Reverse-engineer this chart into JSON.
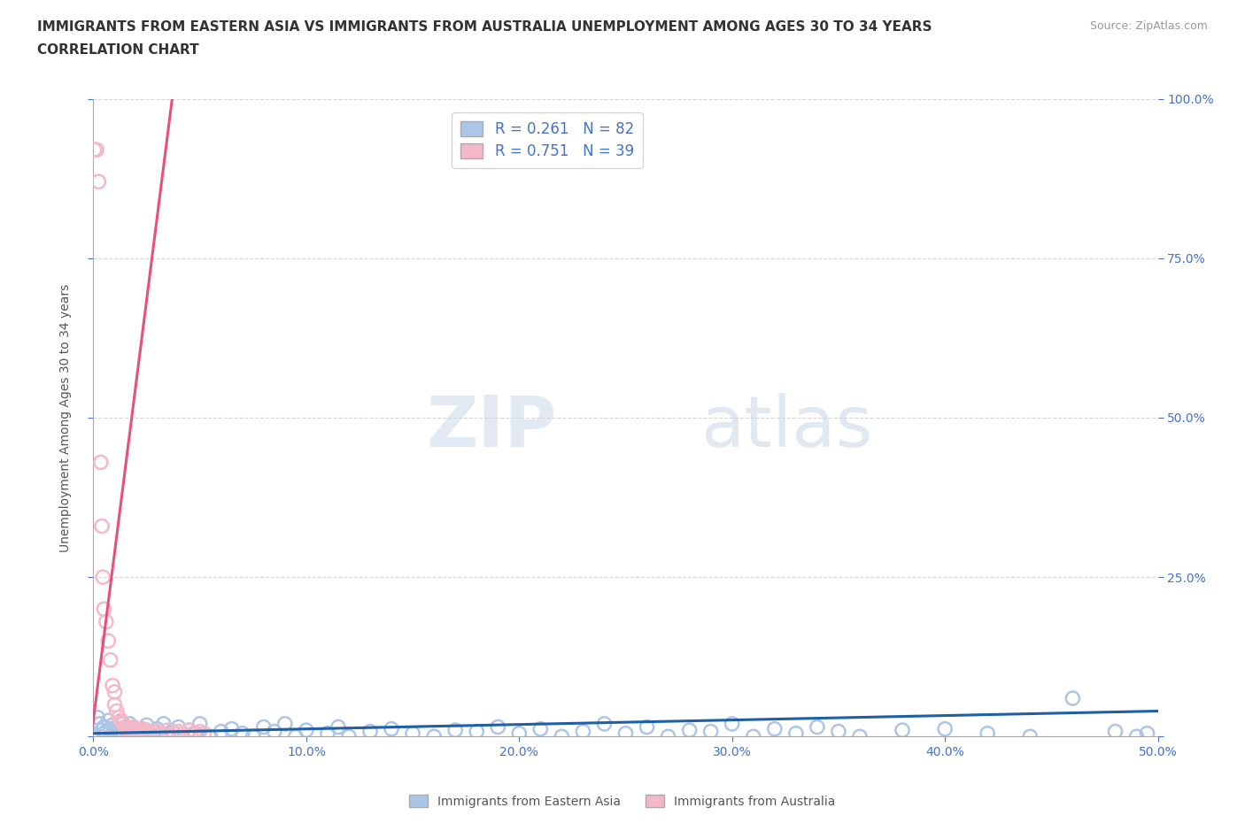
{
  "title_line1": "IMMIGRANTS FROM EASTERN ASIA VS IMMIGRANTS FROM AUSTRALIA UNEMPLOYMENT AMONG AGES 30 TO 34 YEARS",
  "title_line2": "CORRELATION CHART",
  "source": "Source: ZipAtlas.com",
  "ylabel": "Unemployment Among Ages 30 to 34 years",
  "xlim": [
    0.0,
    0.5
  ],
  "ylim": [
    0.0,
    1.0
  ],
  "xticks": [
    0.0,
    0.1,
    0.2,
    0.3,
    0.4,
    0.5
  ],
  "xticklabels": [
    "0.0%",
    "10.0%",
    "20.0%",
    "30.0%",
    "40.0%",
    "50.0%"
  ],
  "yticks": [
    0.0,
    0.25,
    0.5,
    0.75,
    1.0
  ],
  "right_yticklabels": [
    "",
    "25.0%",
    "50.0%",
    "75.0%",
    "100.0%"
  ],
  "blue_R": 0.261,
  "blue_N": 82,
  "pink_R": 0.751,
  "pink_N": 39,
  "blue_color": "#adc6e8",
  "pink_color": "#f5b8c8",
  "blue_line_color": "#1f5fa6",
  "pink_line_color": "#e8507a",
  "blue_scatter": [
    [
      0.002,
      0.03
    ],
    [
      0.003,
      0.02
    ],
    [
      0.004,
      0.01
    ],
    [
      0.005,
      0.005
    ],
    [
      0.005,
      0.015
    ],
    [
      0.006,
      0.008
    ],
    [
      0.007,
      0.025
    ],
    [
      0.008,
      0.0
    ],
    [
      0.008,
      0.012
    ],
    [
      0.009,
      0.018
    ],
    [
      0.01,
      0.005
    ],
    [
      0.01,
      0.0
    ],
    [
      0.011,
      0.01
    ],
    [
      0.012,
      0.022
    ],
    [
      0.013,
      0.005
    ],
    [
      0.014,
      0.0
    ],
    [
      0.015,
      0.015
    ],
    [
      0.016,
      0.008
    ],
    [
      0.017,
      0.02
    ],
    [
      0.018,
      0.003
    ],
    [
      0.019,
      0.012
    ],
    [
      0.02,
      0.0
    ],
    [
      0.022,
      0.01
    ],
    [
      0.023,
      0.005
    ],
    [
      0.025,
      0.018
    ],
    [
      0.027,
      0.0
    ],
    [
      0.028,
      0.008
    ],
    [
      0.03,
      0.012
    ],
    [
      0.032,
      0.005
    ],
    [
      0.033,
      0.02
    ],
    [
      0.035,
      0.0
    ],
    [
      0.037,
      0.008
    ],
    [
      0.04,
      0.015
    ],
    [
      0.042,
      0.0
    ],
    [
      0.045,
      0.01
    ],
    [
      0.048,
      0.005
    ],
    [
      0.05,
      0.02
    ],
    [
      0.055,
      0.0
    ],
    [
      0.06,
      0.008
    ],
    [
      0.065,
      0.012
    ],
    [
      0.07,
      0.005
    ],
    [
      0.075,
      0.0
    ],
    [
      0.08,
      0.015
    ],
    [
      0.085,
      0.008
    ],
    [
      0.09,
      0.02
    ],
    [
      0.095,
      0.0
    ],
    [
      0.1,
      0.01
    ],
    [
      0.11,
      0.005
    ],
    [
      0.115,
      0.015
    ],
    [
      0.12,
      0.0
    ],
    [
      0.13,
      0.008
    ],
    [
      0.14,
      0.012
    ],
    [
      0.15,
      0.005
    ],
    [
      0.16,
      0.0
    ],
    [
      0.17,
      0.01
    ],
    [
      0.18,
      0.008
    ],
    [
      0.19,
      0.015
    ],
    [
      0.2,
      0.005
    ],
    [
      0.21,
      0.012
    ],
    [
      0.22,
      0.0
    ],
    [
      0.23,
      0.008
    ],
    [
      0.24,
      0.02
    ],
    [
      0.25,
      0.005
    ],
    [
      0.26,
      0.015
    ],
    [
      0.27,
      0.0
    ],
    [
      0.28,
      0.01
    ],
    [
      0.29,
      0.008
    ],
    [
      0.3,
      0.02
    ],
    [
      0.31,
      0.0
    ],
    [
      0.32,
      0.012
    ],
    [
      0.33,
      0.005
    ],
    [
      0.34,
      0.015
    ],
    [
      0.35,
      0.008
    ],
    [
      0.36,
      0.0
    ],
    [
      0.38,
      0.01
    ],
    [
      0.4,
      0.012
    ],
    [
      0.42,
      0.005
    ],
    [
      0.44,
      0.0
    ],
    [
      0.46,
      0.06
    ],
    [
      0.48,
      0.008
    ],
    [
      0.49,
      0.0
    ],
    [
      0.495,
      0.005
    ]
  ],
  "pink_scatter": [
    [
      0.0005,
      0.92
    ],
    [
      0.0015,
      0.92
    ],
    [
      0.0025,
      0.87
    ],
    [
      0.0035,
      0.43
    ],
    [
      0.004,
      0.33
    ],
    [
      0.0045,
      0.25
    ],
    [
      0.005,
      0.2
    ],
    [
      0.006,
      0.18
    ],
    [
      0.007,
      0.15
    ],
    [
      0.008,
      0.12
    ],
    [
      0.009,
      0.08
    ],
    [
      0.01,
      0.07
    ],
    [
      0.01,
      0.05
    ],
    [
      0.011,
      0.04
    ],
    [
      0.012,
      0.03
    ],
    [
      0.013,
      0.025
    ],
    [
      0.014,
      0.02
    ],
    [
      0.015,
      0.015
    ],
    [
      0.016,
      0.01
    ],
    [
      0.017,
      0.008
    ],
    [
      0.018,
      0.01
    ],
    [
      0.019,
      0.015
    ],
    [
      0.02,
      0.01
    ],
    [
      0.021,
      0.005
    ],
    [
      0.022,
      0.008
    ],
    [
      0.023,
      0.012
    ],
    [
      0.024,
      0.005
    ],
    [
      0.025,
      0.01
    ],
    [
      0.027,
      0.005
    ],
    [
      0.03,
      0.008
    ],
    [
      0.032,
      0.005
    ],
    [
      0.035,
      0.01
    ],
    [
      0.038,
      0.005
    ],
    [
      0.04,
      0.008
    ],
    [
      0.042,
      0.005
    ],
    [
      0.045,
      0.01
    ],
    [
      0.047,
      0.005
    ],
    [
      0.05,
      0.008
    ],
    [
      0.052,
      0.005
    ]
  ],
  "blue_trend_x": [
    0.0,
    0.5
  ],
  "blue_trend_y": [
    0.005,
    0.04
  ],
  "pink_trend_x": [
    -0.001,
    0.037
  ],
  "pink_trend_y": [
    0.0,
    1.0
  ],
  "watermark_zip": "ZIP",
  "watermark_atlas": "atlas",
  "legend_blue_label": "Immigrants from Eastern Asia",
  "legend_pink_label": "Immigrants from Australia",
  "title_fontsize": 11,
  "axis_color": "#4472c4",
  "grid_color": "#cccccc",
  "background_color": "#ffffff"
}
